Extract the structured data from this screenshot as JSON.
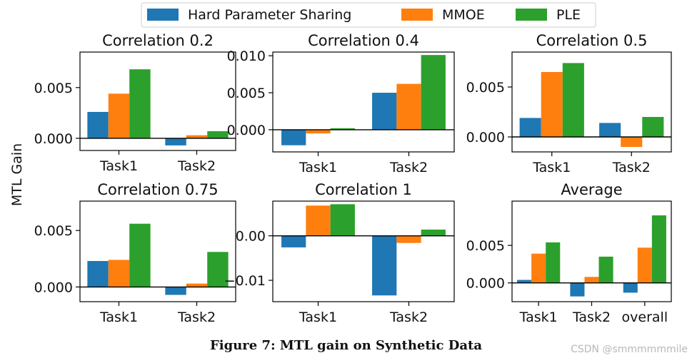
{
  "figure": {
    "ylabel": "MTL Gain",
    "caption": "Figure 7: MTL gain on Synthetic Data",
    "watermark": "CSDN @smmmmmmile"
  },
  "legend": {
    "placement": "top-center",
    "entries": [
      {
        "label": "Hard Parameter Sharing",
        "color": "#1f77b4"
      },
      {
        "label": "MMOE",
        "color": "#ff7f0e"
      },
      {
        "label": "PLE",
        "color": "#2ca02c"
      }
    ]
  },
  "chart_data": [
    {
      "type": "bar",
      "title": "Correlation 0.2",
      "categories": [
        "Task1",
        "Task2"
      ],
      "ylim": [
        -0.0012,
        0.0085
      ],
      "yticks": [
        {
          "v": 0.0,
          "label": "0.000"
        },
        {
          "v": 0.005,
          "label": "0.005"
        }
      ],
      "series": [
        {
          "name": "Hard Parameter Sharing",
          "values": [
            0.0026,
            -0.0007
          ]
        },
        {
          "name": "MMOE",
          "values": [
            0.0044,
            0.0003
          ]
        },
        {
          "name": "PLE",
          "values": [
            0.0068,
            0.0007
          ]
        }
      ]
    },
    {
      "type": "bar",
      "title": "Correlation 0.4",
      "categories": [
        "Task1",
        "Task2"
      ],
      "ylim": [
        -0.003,
        0.0105
      ],
      "yticks": [
        {
          "v": 0.0,
          "label": "0.000"
        },
        {
          "v": 0.005,
          "label": "0.005"
        },
        {
          "v": 0.01,
          "label": "0.010"
        }
      ],
      "series": [
        {
          "name": "Hard Parameter Sharing",
          "values": [
            -0.0021,
            0.005
          ]
        },
        {
          "name": "MMOE",
          "values": [
            -0.0005,
            0.0062
          ]
        },
        {
          "name": "PLE",
          "values": [
            0.0002,
            0.0101
          ]
        }
      ]
    },
    {
      "type": "bar",
      "title": "Correlation 0.5",
      "categories": [
        "Task1",
        "Task2"
      ],
      "ylim": [
        -0.0015,
        0.0085
      ],
      "yticks": [
        {
          "v": 0.0,
          "label": "0.000"
        },
        {
          "v": 0.005,
          "label": "0.005"
        }
      ],
      "series": [
        {
          "name": "Hard Parameter Sharing",
          "values": [
            0.0019,
            0.0014
          ]
        },
        {
          "name": "MMOE",
          "values": [
            0.0065,
            -0.001
          ]
        },
        {
          "name": "PLE",
          "values": [
            0.0074,
            0.002
          ]
        }
      ]
    },
    {
      "type": "bar",
      "title": "Correlation 0.75",
      "categories": [
        "Task1",
        "Task2"
      ],
      "ylim": [
        -0.0013,
        0.0076
      ],
      "yticks": [
        {
          "v": 0.0,
          "label": "0.000"
        },
        {
          "v": 0.005,
          "label": "0.005"
        }
      ],
      "series": [
        {
          "name": "Hard Parameter Sharing",
          "values": [
            0.0023,
            -0.0007
          ]
        },
        {
          "name": "MMOE",
          "values": [
            0.0024,
            0.0003
          ]
        },
        {
          "name": "PLE",
          "values": [
            0.0056,
            0.0031
          ]
        }
      ]
    },
    {
      "type": "bar",
      "title": "Correlation 1",
      "categories": [
        "Task1",
        "Task2"
      ],
      "ylim": [
        -0.0148,
        0.0078
      ],
      "yticks": [
        {
          "v": -0.01,
          "label": "−0.01"
        },
        {
          "v": 0.0,
          "label": "0.00"
        }
      ],
      "series": [
        {
          "name": "Hard Parameter Sharing",
          "values": [
            -0.0026,
            -0.0134
          ]
        },
        {
          "name": "MMOE",
          "values": [
            0.0068,
            -0.0016
          ]
        },
        {
          "name": "PLE",
          "values": [
            0.0071,
            0.0014
          ]
        }
      ]
    },
    {
      "type": "bar",
      "title": "Average",
      "categories": [
        "Task1",
        "Task2",
        "overall"
      ],
      "ylim": [
        -0.0025,
        0.0109
      ],
      "yticks": [
        {
          "v": 0.0,
          "label": "0.000"
        },
        {
          "v": 0.005,
          "label": "0.005"
        }
      ],
      "series": [
        {
          "name": "Hard Parameter Sharing",
          "values": [
            0.0004,
            -0.0018,
            -0.0013
          ]
        },
        {
          "name": "MMOE",
          "values": [
            0.0039,
            0.0008,
            0.0047
          ]
        },
        {
          "name": "PLE",
          "values": [
            0.0054,
            0.0035,
            0.009
          ]
        }
      ]
    }
  ]
}
